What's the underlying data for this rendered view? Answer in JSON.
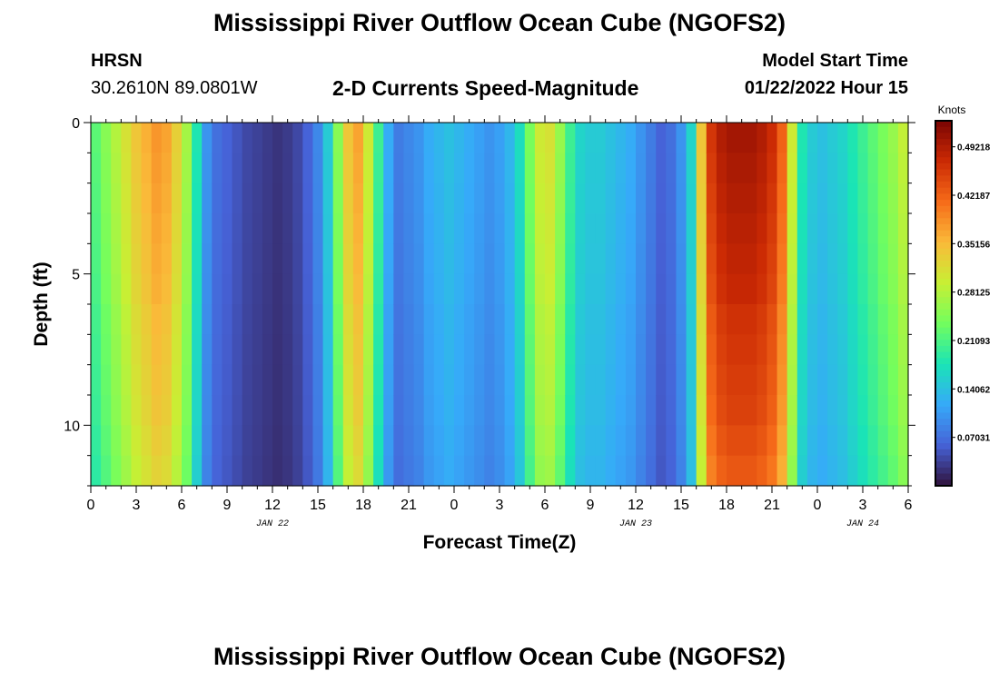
{
  "header": {
    "title": "Mississippi River Outflow Ocean Cube (NGOFS2)",
    "station": "HRSN",
    "coords": "30.2610N  89.0801W",
    "subtitle": "2-D Currents Speed-Magnitude",
    "model_start_label": "Model Start Time",
    "model_start_value": "01/22/2022 Hour 15"
  },
  "footer": {
    "title": "Mississippi River Outflow Ocean Cube (NGOFS2)"
  },
  "colors": {
    "cmap": [
      "#30123b",
      "#4662d7",
      "#36aaf9",
      "#1ae4b6",
      "#72fe5e",
      "#c8ef34",
      "#faba39",
      "#f66b19",
      "#cb2a04",
      "#7a0403"
    ]
  },
  "chart_data": {
    "type": "heatmap",
    "xlabel": "Forecast Time(Z)",
    "ylabel": "Depth (ft)",
    "x_range_hours": [
      0,
      54
    ],
    "y_range_ft": [
      0,
      12
    ],
    "x_ticks": [
      "0",
      "3",
      "6",
      "9",
      "12",
      "15",
      "18",
      "21",
      "0",
      "3",
      "6",
      "9",
      "12",
      "15",
      "18",
      "21",
      "0",
      "3",
      "6"
    ],
    "y_ticks": [
      "0",
      "5",
      "10"
    ],
    "date_labels": [
      {
        "text": "JAN 22",
        "hour": 12
      },
      {
        "text": "JAN 23",
        "hour": 36
      },
      {
        "text": "JAN 24",
        "hour": 51
      }
    ],
    "colorbar": {
      "unit": "Knots",
      "min": 0.0,
      "max": 0.53,
      "ticks": [
        "0.07031",
        "0.14062",
        "0.21093",
        "0.28125",
        "0.35156",
        "0.42187",
        "0.49218"
      ]
    },
    "column_speeds_knots": [
      0.22,
      0.25,
      0.28,
      0.31,
      0.34,
      0.36,
      0.38,
      0.37,
      0.33,
      0.27,
      0.18,
      0.1,
      0.07,
      0.06,
      0.05,
      0.04,
      0.035,
      0.03,
      0.025,
      0.03,
      0.04,
      0.06,
      0.09,
      0.15,
      0.25,
      0.34,
      0.37,
      0.3,
      0.2,
      0.12,
      0.08,
      0.09,
      0.1,
      0.12,
      0.13,
      0.14,
      0.13,
      0.12,
      0.11,
      0.1,
      0.11,
      0.13,
      0.17,
      0.24,
      0.3,
      0.31,
      0.26,
      0.2,
      0.16,
      0.15,
      0.15,
      0.14,
      0.13,
      0.12,
      0.1,
      0.08,
      0.06,
      0.07,
      0.1,
      0.16,
      0.34,
      0.46,
      0.49,
      0.5,
      0.5,
      0.5,
      0.49,
      0.47,
      0.42,
      0.3,
      0.18,
      0.15,
      0.14,
      0.15,
      0.16,
      0.18,
      0.2,
      0.22,
      0.24,
      0.26,
      0.29
    ],
    "depth_factor": [
      1.0,
      0.99,
      0.98,
      0.97,
      0.96,
      0.95,
      0.93,
      0.92,
      0.91,
      0.9,
      0.88,
      0.86
    ]
  }
}
